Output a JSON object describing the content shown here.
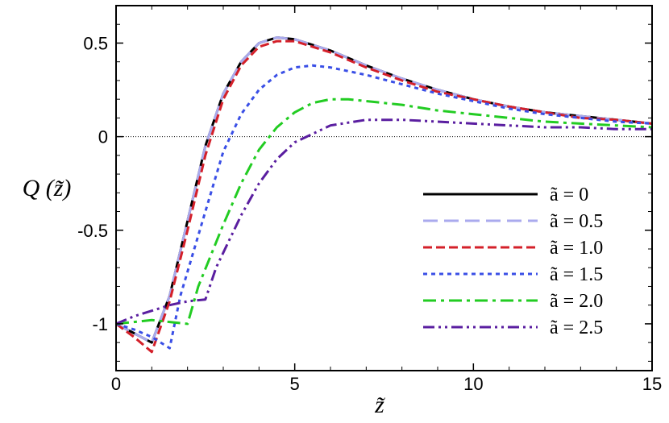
{
  "chart_data": {
    "type": "line",
    "xlabel": "z̃",
    "ylabel": "Q (z̃)",
    "xlim": [
      0,
      15
    ],
    "ylim": [
      -1.25,
      0.7
    ],
    "x_ticks": [
      {
        "value": 0,
        "label": "0"
      },
      {
        "value": 5,
        "label": "5"
      },
      {
        "value": 10,
        "label": "10"
      },
      {
        "value": 15,
        "label": "15"
      }
    ],
    "y_ticks": [
      {
        "value": 0.5,
        "label": "0.5"
      },
      {
        "value": 0,
        "label": "0"
      },
      {
        "value": -0.5,
        "label": "-0.5"
      },
      {
        "value": -1,
        "label": "-1"
      }
    ],
    "reference_line": {
      "y": 0,
      "style": "dotted"
    },
    "grid": false,
    "legend_position": "right",
    "series": [
      {
        "name": "ã = 0",
        "color": "#000000",
        "dash": "solid",
        "points": [
          [
            0,
            -1.0
          ],
          [
            0.5,
            -1.05
          ],
          [
            1.0,
            -1.1
          ],
          [
            1.5,
            -0.85
          ],
          [
            2.0,
            -0.45
          ],
          [
            2.5,
            -0.05
          ],
          [
            3.0,
            0.23
          ],
          [
            3.5,
            0.4
          ],
          [
            4.0,
            0.5
          ],
          [
            4.5,
            0.53
          ],
          [
            5.0,
            0.52
          ],
          [
            6.0,
            0.46
          ],
          [
            7.0,
            0.38
          ],
          [
            8.0,
            0.31
          ],
          [
            9.0,
            0.25
          ],
          [
            10.0,
            0.2
          ],
          [
            11.0,
            0.16
          ],
          [
            12.0,
            0.13
          ],
          [
            13.0,
            0.11
          ],
          [
            14.0,
            0.09
          ],
          [
            15.0,
            0.07
          ]
        ]
      },
      {
        "name": "ã = 0.5",
        "color": "#aaaaee",
        "dash": "long-dash",
        "points": [
          [
            0,
            -1.0
          ],
          [
            0.5,
            -1.05
          ],
          [
            1.0,
            -1.1
          ],
          [
            1.5,
            -0.85
          ],
          [
            2.0,
            -0.45
          ],
          [
            2.5,
            -0.05
          ],
          [
            3.0,
            0.23
          ],
          [
            3.5,
            0.4
          ],
          [
            4.0,
            0.5
          ],
          [
            4.5,
            0.53
          ],
          [
            5.0,
            0.52
          ],
          [
            6.0,
            0.46
          ],
          [
            7.0,
            0.38
          ],
          [
            8.0,
            0.31
          ],
          [
            9.0,
            0.25
          ],
          [
            10.0,
            0.2
          ],
          [
            11.0,
            0.16
          ],
          [
            12.0,
            0.13
          ],
          [
            13.0,
            0.11
          ],
          [
            14.0,
            0.09
          ],
          [
            15.0,
            0.07
          ]
        ]
      },
      {
        "name": "ã = 1.0",
        "color": "#d4202a",
        "dash": "dash",
        "points": [
          [
            0,
            -1.0
          ],
          [
            0.5,
            -1.07
          ],
          [
            1.0,
            -1.15
          ],
          [
            1.5,
            -0.88
          ],
          [
            2.0,
            -0.5
          ],
          [
            2.5,
            -0.1
          ],
          [
            3.0,
            0.2
          ],
          [
            3.5,
            0.38
          ],
          [
            4.0,
            0.48
          ],
          [
            4.5,
            0.51
          ],
          [
            5.0,
            0.51
          ],
          [
            6.0,
            0.45
          ],
          [
            7.0,
            0.37
          ],
          [
            8.0,
            0.3
          ],
          [
            9.0,
            0.24
          ],
          [
            10.0,
            0.2
          ],
          [
            11.0,
            0.16
          ],
          [
            12.0,
            0.13
          ],
          [
            13.0,
            0.1
          ],
          [
            14.0,
            0.09
          ],
          [
            15.0,
            0.07
          ]
        ]
      },
      {
        "name": "ã = 1.5",
        "color": "#3a4fe6",
        "dash": "dot",
        "points": [
          [
            0,
            -1.0
          ],
          [
            0.5,
            -1.03
          ],
          [
            1.0,
            -1.07
          ],
          [
            1.5,
            -1.13
          ],
          [
            1.8,
            -0.85
          ],
          [
            2.5,
            -0.4
          ],
          [
            3.0,
            -0.08
          ],
          [
            3.5,
            0.12
          ],
          [
            4.0,
            0.25
          ],
          [
            4.5,
            0.33
          ],
          [
            5.0,
            0.37
          ],
          [
            5.5,
            0.38
          ],
          [
            6.0,
            0.37
          ],
          [
            7.0,
            0.33
          ],
          [
            8.0,
            0.28
          ],
          [
            9.0,
            0.23
          ],
          [
            10.0,
            0.19
          ],
          [
            11.0,
            0.15
          ],
          [
            12.0,
            0.12
          ],
          [
            13.0,
            0.1
          ],
          [
            14.0,
            0.08
          ],
          [
            15.0,
            0.07
          ]
        ]
      },
      {
        "name": "ã = 2.0",
        "color": "#22cc22",
        "dash": "dash-dot",
        "points": [
          [
            0,
            -1.0
          ],
          [
            0.5,
            -0.99
          ],
          [
            1.0,
            -0.98
          ],
          [
            1.5,
            -0.99
          ],
          [
            2.0,
            -1.0
          ],
          [
            2.3,
            -0.8
          ],
          [
            3.0,
            -0.47
          ],
          [
            3.5,
            -0.25
          ],
          [
            4.0,
            -0.07
          ],
          [
            4.5,
            0.05
          ],
          [
            5.0,
            0.13
          ],
          [
            5.5,
            0.18
          ],
          [
            6.0,
            0.2
          ],
          [
            6.5,
            0.2
          ],
          [
            7.0,
            0.19
          ],
          [
            8.0,
            0.17
          ],
          [
            9.0,
            0.14
          ],
          [
            10.0,
            0.12
          ],
          [
            11.0,
            0.1
          ],
          [
            12.0,
            0.08
          ],
          [
            13.0,
            0.07
          ],
          [
            14.0,
            0.06
          ],
          [
            15.0,
            0.05
          ]
        ]
      },
      {
        "name": "ã = 2.5",
        "color": "#5a1ea0",
        "dash": "dash-dot-dot",
        "points": [
          [
            0,
            -1.0
          ],
          [
            0.5,
            -0.96
          ],
          [
            1.0,
            -0.93
          ],
          [
            1.5,
            -0.9
          ],
          [
            2.0,
            -0.88
          ],
          [
            2.5,
            -0.87
          ],
          [
            2.8,
            -0.7
          ],
          [
            3.5,
            -0.42
          ],
          [
            4.0,
            -0.25
          ],
          [
            4.5,
            -0.12
          ],
          [
            5.0,
            -0.03
          ],
          [
            6.0,
            0.06
          ],
          [
            7.0,
            0.09
          ],
          [
            8.0,
            0.09
          ],
          [
            9.0,
            0.08
          ],
          [
            10.0,
            0.07
          ],
          [
            11.0,
            0.06
          ],
          [
            12.0,
            0.05
          ],
          [
            13.0,
            0.05
          ],
          [
            14.0,
            0.04
          ],
          [
            15.0,
            0.04
          ]
        ]
      }
    ]
  }
}
